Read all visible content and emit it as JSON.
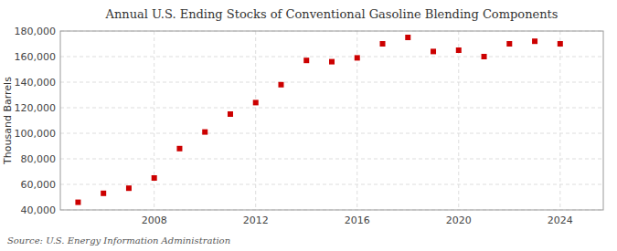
{
  "chart_data": {
    "type": "scatter",
    "title": "Annual U.S. Ending Stocks of Conventional Gasoline Blending Components",
    "ylabel": "Thousand Barrels",
    "source": "Source: U.S. Energy Information Administration",
    "x": [
      2005,
      2006,
      2007,
      2008,
      2009,
      2010,
      2011,
      2012,
      2013,
      2014,
      2015,
      2016,
      2017,
      2018,
      2019,
      2020,
      2021,
      2022,
      2023,
      2024
    ],
    "values": [
      46000,
      53000,
      57000,
      65000,
      88000,
      101000,
      115000,
      124000,
      138000,
      157000,
      156000,
      159000,
      170000,
      175000,
      164000,
      165000,
      160000,
      170000,
      172000,
      170000
    ],
    "color": "#cc0000",
    "marker": "square",
    "xlim": [
      2004.3,
      2025.7
    ],
    "xticks": [
      2008,
      2012,
      2016,
      2020,
      2024
    ],
    "ylim": [
      40000,
      180000
    ],
    "yticks": [
      {
        "value": 40000,
        "label": "40,000"
      },
      {
        "value": 60000,
        "label": "60,000"
      },
      {
        "value": 80000,
        "label": "80,000"
      },
      {
        "value": 100000,
        "label": "100,000"
      },
      {
        "value": 120000,
        "label": "120,000"
      },
      {
        "value": 140000,
        "label": "140,000"
      },
      {
        "value": 160000,
        "label": "160,000"
      },
      {
        "value": 180000,
        "label": "180,000"
      }
    ],
    "grid": true
  }
}
